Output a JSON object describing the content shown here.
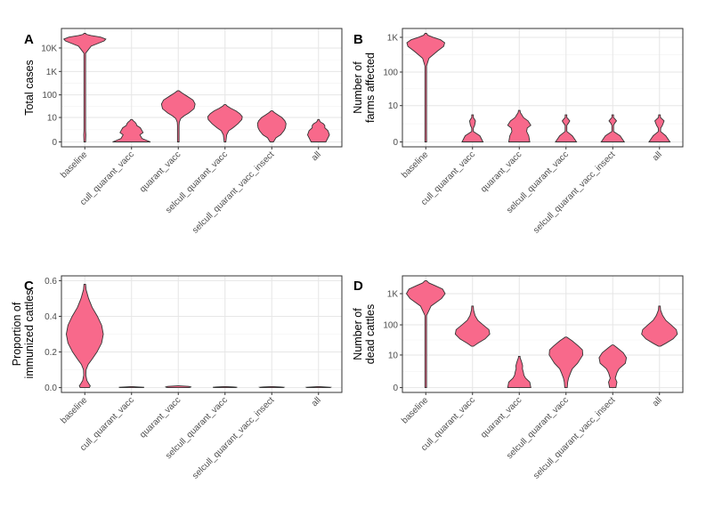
{
  "figure": {
    "fill_color": "#F8698B",
    "outline_color": "#333333"
  },
  "chart_data": [
    {
      "panel": "A",
      "type": "violin",
      "ylabel_lines": [
        "Total cases"
      ],
      "scale": "log1p",
      "yticks": [
        0,
        10,
        100,
        1000,
        10000
      ],
      "ytick_labels": [
        "0",
        "10",
        "100",
        "1K",
        "10K"
      ],
      "categories": [
        "baseline",
        "cull_quarant_vacc",
        "quarant_vacc",
        "selcull_quarant_vacc",
        "selcull_quarant_vacc_insect",
        "all"
      ],
      "violins": [
        {
          "profile": [
            [
              0,
              0.015
            ],
            [
              1,
              0.05
            ],
            [
              2,
              0.02
            ],
            [
              3,
              0.004
            ],
            [
              10,
              0.004
            ],
            [
              100,
              0.004
            ],
            [
              1000,
              0.006
            ],
            [
              6000,
              0.04
            ],
            [
              12000,
              0.3
            ],
            [
              20000,
              0.92
            ],
            [
              24000,
              1.0
            ],
            [
              29000,
              0.75
            ],
            [
              34000,
              0.3
            ],
            [
              38000,
              0.08
            ],
            [
              42000,
              0.0
            ]
          ]
        },
        {
          "profile": [
            [
              0,
              0.9
            ],
            [
              0.4,
              0.5
            ],
            [
              1,
              0.4
            ],
            [
              1.5,
              0.55
            ],
            [
              2,
              0.5
            ],
            [
              3,
              0.42
            ],
            [
              4,
              0.25
            ],
            [
              5,
              0.22
            ],
            [
              6,
              0.16
            ],
            [
              7,
              0.08
            ],
            [
              8,
              0.0
            ]
          ]
        },
        {
          "profile": [
            [
              0,
              0.03
            ],
            [
              0.5,
              0.01
            ],
            [
              1,
              0.03
            ],
            [
              2,
              0.02
            ],
            [
              4,
              0.01
            ],
            [
              6,
              0.05
            ],
            [
              9,
              0.12
            ],
            [
              12,
              0.28
            ],
            [
              16,
              0.5
            ],
            [
              25,
              0.75
            ],
            [
              40,
              0.8
            ],
            [
              60,
              0.7
            ],
            [
              90,
              0.4
            ],
            [
              120,
              0.18
            ],
            [
              150,
              0.0
            ]
          ]
        },
        {
          "profile": [
            [
              0,
              0.03
            ],
            [
              1,
              0.08
            ],
            [
              2,
              0.18
            ],
            [
              3,
              0.38
            ],
            [
              5,
              0.62
            ],
            [
              8,
              0.8
            ],
            [
              11,
              0.82
            ],
            [
              15,
              0.7
            ],
            [
              20,
              0.52
            ],
            [
              26,
              0.28
            ],
            [
              33,
              0.1
            ],
            [
              38,
              0.0
            ]
          ]
        },
        {
          "profile": [
            [
              0,
              0.08
            ],
            [
              0.5,
              0.2
            ],
            [
              1,
              0.42
            ],
            [
              2,
              0.58
            ],
            [
              3,
              0.65
            ],
            [
              5,
              0.68
            ],
            [
              7,
              0.62
            ],
            [
              10,
              0.48
            ],
            [
              13,
              0.3
            ],
            [
              17,
              0.12
            ],
            [
              20,
              0.0
            ]
          ]
        },
        {
          "profile": [
            [
              0,
              0.35
            ],
            [
              0.5,
              0.45
            ],
            [
              1,
              0.52
            ],
            [
              2,
              0.45
            ],
            [
              3,
              0.3
            ],
            [
              4,
              0.3
            ],
            [
              5,
              0.23
            ],
            [
              6,
              0.1
            ],
            [
              7,
              0.05
            ],
            [
              8,
              0.0
            ]
          ]
        }
      ]
    },
    {
      "panel": "B",
      "type": "violin",
      "ylabel_lines": [
        "Number of",
        "farms affected"
      ],
      "scale": "log1p",
      "yticks": [
        0,
        10,
        100,
        1000
      ],
      "ytick_labels": [
        "0",
        "10",
        "100",
        "1K"
      ],
      "categories": [
        "baseline",
        "cull_quarant_vacc",
        "quarant_vacc",
        "selcull_quarant_vacc",
        "selcull_quarant_vacc_insect",
        "all"
      ],
      "violins": [
        {
          "profile": [
            [
              0,
              0.04
            ],
            [
              1,
              0.004
            ],
            [
              10,
              0.004
            ],
            [
              60,
              0.005
            ],
            [
              150,
              0.02
            ],
            [
              250,
              0.15
            ],
            [
              400,
              0.55
            ],
            [
              550,
              0.85
            ],
            [
              700,
              0.9
            ],
            [
              850,
              0.7
            ],
            [
              1000,
              0.35
            ],
            [
              1150,
              0.1
            ],
            [
              1300,
              0.0
            ]
          ]
        },
        {
          "profile": [
            [
              0,
              0.5
            ],
            [
              0.5,
              0.35
            ],
            [
              1,
              0.04
            ],
            [
              1.5,
              0.04
            ],
            [
              2,
              0.1
            ],
            [
              3,
              0.14
            ],
            [
              3.6,
              0.08
            ],
            [
              4,
              0.04
            ],
            [
              5,
              0.0
            ]
          ]
        },
        {
          "profile": [
            [
              0,
              0.5
            ],
            [
              0.5,
              0.45
            ],
            [
              1,
              0.35
            ],
            [
              1.5,
              0.38
            ],
            [
              2,
              0.55
            ],
            [
              3,
              0.42
            ],
            [
              4,
              0.2
            ],
            [
              5,
              0.12
            ],
            [
              6,
              0.05
            ],
            [
              7,
              0.0
            ]
          ]
        },
        {
          "profile": [
            [
              0,
              0.5
            ],
            [
              0.5,
              0.3
            ],
            [
              1,
              0.04
            ],
            [
              2,
              0.04
            ],
            [
              2.5,
              0.12
            ],
            [
              3,
              0.18
            ],
            [
              3.6,
              0.1
            ],
            [
              4,
              0.04
            ],
            [
              5,
              0.0
            ]
          ]
        },
        {
          "profile": [
            [
              0,
              0.55
            ],
            [
              0.5,
              0.35
            ],
            [
              1,
              0.04
            ],
            [
              2,
              0.04
            ],
            [
              2.5,
              0.1
            ],
            [
              3,
              0.18
            ],
            [
              3.6,
              0.1
            ],
            [
              4,
              0.03
            ],
            [
              5,
              0.0
            ]
          ]
        },
        {
          "profile": [
            [
              0,
              0.5
            ],
            [
              0.5,
              0.3
            ],
            [
              1,
              0.05
            ],
            [
              1.5,
              0.06
            ],
            [
              2,
              0.14
            ],
            [
              3,
              0.22
            ],
            [
              3.6,
              0.12
            ],
            [
              4,
              0.05
            ],
            [
              5,
              0.0
            ]
          ]
        }
      ]
    },
    {
      "panel": "C",
      "type": "violin",
      "ylabel_lines": [
        "Proportion of",
        "immunized cattles"
      ],
      "scale": "linear",
      "yticks": [
        0,
        0.2,
        0.4,
        0.6
      ],
      "ytick_labels": [
        "0.0",
        "0.2",
        "0.4",
        "0.6"
      ],
      "categories": [
        "baseline",
        "cull_quarant_vacc",
        "quarant_vacc",
        "selcull_quarant_vacc",
        "selcull_quarant_vacc_insect",
        "all"
      ],
      "violins": [
        {
          "profile": [
            [
              0,
              0.22
            ],
            [
              0.01,
              0.26
            ],
            [
              0.02,
              0.2
            ],
            [
              0.04,
              0.1
            ],
            [
              0.07,
              0.05
            ],
            [
              0.1,
              0.06
            ],
            [
              0.13,
              0.16
            ],
            [
              0.16,
              0.35
            ],
            [
              0.2,
              0.58
            ],
            [
              0.25,
              0.8
            ],
            [
              0.3,
              0.88
            ],
            [
              0.35,
              0.8
            ],
            [
              0.4,
              0.6
            ],
            [
              0.45,
              0.35
            ],
            [
              0.5,
              0.18
            ],
            [
              0.55,
              0.06
            ],
            [
              0.58,
              0.0
            ]
          ]
        },
        {
          "profile": [
            [
              0,
              0.55
            ],
            [
              0.002,
              0.6
            ],
            [
              0.004,
              0.3
            ],
            [
              0.006,
              0.0
            ]
          ]
        },
        {
          "profile": [
            [
              0,
              0.5
            ],
            [
              0.002,
              0.58
            ],
            [
              0.004,
              0.6
            ],
            [
              0.007,
              0.5
            ],
            [
              0.01,
              0.0
            ]
          ]
        },
        {
          "profile": [
            [
              0,
              0.5
            ],
            [
              0.002,
              0.58
            ],
            [
              0.004,
              0.4
            ],
            [
              0.006,
              0.0
            ]
          ]
        },
        {
          "profile": [
            [
              0,
              0.55
            ],
            [
              0.002,
              0.58
            ],
            [
              0.004,
              0.4
            ],
            [
              0.006,
              0.0
            ]
          ]
        },
        {
          "profile": [
            [
              0,
              0.55
            ],
            [
              0.002,
              0.58
            ],
            [
              0.004,
              0.3
            ],
            [
              0.006,
              0.0
            ]
          ]
        }
      ]
    },
    {
      "panel": "D",
      "type": "violin",
      "ylabel_lines": [
        "Number of",
        "dead cattles"
      ],
      "scale": "log1p",
      "yticks": [
        0,
        10,
        100,
        1000
      ],
      "ytick_labels": [
        "0",
        "10",
        "100",
        "1K"
      ],
      "categories": [
        "baseline",
        "cull_quarant_vacc",
        "quarant_vacc",
        "selcull_quarant_vacc",
        "selcull_quarant_vacc_insect",
        "all"
      ],
      "violins": [
        {
          "profile": [
            [
              0,
              0.005
            ],
            [
              10,
              0.005
            ],
            [
              100,
              0.006
            ],
            [
              200,
              0.02
            ],
            [
              400,
              0.25
            ],
            [
              700,
              0.75
            ],
            [
              1000,
              0.92
            ],
            [
              1400,
              0.8
            ],
            [
              1800,
              0.45
            ],
            [
              2200,
              0.15
            ],
            [
              2600,
              0.0
            ]
          ]
        },
        {
          "profile": [
            [
              20,
              0.05
            ],
            [
              25,
              0.25
            ],
            [
              35,
              0.6
            ],
            [
              50,
              0.82
            ],
            [
              70,
              0.78
            ],
            [
              100,
              0.5
            ],
            [
              140,
              0.25
            ],
            [
              200,
              0.12
            ],
            [
              300,
              0.05
            ],
            [
              400,
              0.0
            ]
          ]
        },
        {
          "profile": [
            [
              0,
              0.55
            ],
            [
              0.5,
              0.5
            ],
            [
              1,
              0.3
            ],
            [
              1.5,
              0.22
            ],
            [
              2,
              0.2
            ],
            [
              3,
              0.15
            ],
            [
              4,
              0.16
            ],
            [
              5,
              0.13
            ],
            [
              6,
              0.1
            ],
            [
              8,
              0.04
            ],
            [
              9,
              0.0
            ]
          ]
        },
        {
          "profile": [
            [
              0,
              0.06
            ],
            [
              0.5,
              0.08
            ],
            [
              1,
              0.12
            ],
            [
              2,
              0.22
            ],
            [
              3,
              0.3
            ],
            [
              5,
              0.55
            ],
            [
              10,
              0.8
            ],
            [
              15,
              0.78
            ],
            [
              20,
              0.6
            ],
            [
              30,
              0.3
            ],
            [
              40,
              0.0
            ]
          ]
        },
        {
          "profile": [
            [
              0,
              0.15
            ],
            [
              0.5,
              0.2
            ],
            [
              1,
              0.12
            ],
            [
              2,
              0.2
            ],
            [
              3,
              0.3
            ],
            [
              5,
              0.6
            ],
            [
              8,
              0.65
            ],
            [
              12,
              0.5
            ],
            [
              18,
              0.2
            ],
            [
              22,
              0.0
            ]
          ]
        },
        {
          "profile": [
            [
              20,
              0.05
            ],
            [
              25,
              0.3
            ],
            [
              35,
              0.65
            ],
            [
              50,
              0.85
            ],
            [
              70,
              0.8
            ],
            [
              100,
              0.55
            ],
            [
              140,
              0.3
            ],
            [
              200,
              0.15
            ],
            [
              300,
              0.05
            ],
            [
              400,
              0.0
            ]
          ]
        }
      ]
    }
  ]
}
